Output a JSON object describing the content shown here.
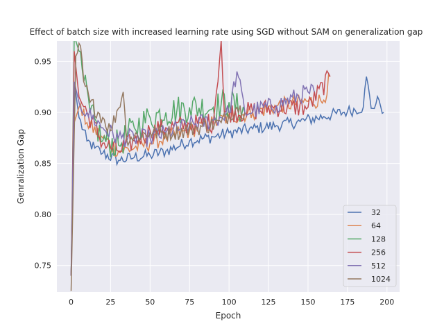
{
  "chart_data": {
    "type": "line",
    "title": "Effect of batch size with increased learning rate using SGD without SAM on generalization gap",
    "xlabel": "Epoch",
    "ylabel": "Genralization Gap",
    "xlim": [
      -9,
      208
    ],
    "ylim": [
      0.724,
      0.97
    ],
    "xticks": [
      0,
      25,
      50,
      75,
      100,
      125,
      150,
      175,
      200
    ],
    "yticks": [
      0.75,
      0.8,
      0.85,
      0.9,
      0.95
    ],
    "grid": true,
    "legend_position": "lower-right",
    "series": [
      {
        "name": "32",
        "color": "#4c72b0",
        "last_epoch": 198,
        "keypoints": [
          [
            0,
            0.74
          ],
          [
            2,
            0.93
          ],
          [
            5,
            0.895
          ],
          [
            10,
            0.872
          ],
          [
            15,
            0.865
          ],
          [
            20,
            0.86
          ],
          [
            30,
            0.853
          ],
          [
            40,
            0.856
          ],
          [
            50,
            0.858
          ],
          [
            60,
            0.862
          ],
          [
            75,
            0.872
          ],
          [
            90,
            0.876
          ],
          [
            100,
            0.88
          ],
          [
            115,
            0.884
          ],
          [
            130,
            0.887
          ],
          [
            145,
            0.891
          ],
          [
            160,
            0.896
          ],
          [
            175,
            0.901
          ],
          [
            185,
            0.905
          ],
          [
            187,
            0.935
          ],
          [
            190,
            0.904
          ],
          [
            195,
            0.912
          ],
          [
            198,
            0.9
          ]
        ],
        "noise": 0.006
      },
      {
        "name": "64",
        "color": "#dd8452",
        "last_epoch": 164,
        "keypoints": [
          [
            0,
            0.74
          ],
          [
            2,
            0.89
          ],
          [
            5,
            0.905
          ],
          [
            10,
            0.89
          ],
          [
            20,
            0.875
          ],
          [
            30,
            0.862
          ],
          [
            40,
            0.865
          ],
          [
            50,
            0.87
          ],
          [
            60,
            0.875
          ],
          [
            75,
            0.882
          ],
          [
            90,
            0.89
          ],
          [
            100,
            0.895
          ],
          [
            115,
            0.9
          ],
          [
            130,
            0.906
          ],
          [
            145,
            0.91
          ],
          [
            160,
            0.912
          ],
          [
            164,
            0.935
          ]
        ],
        "noise": 0.008
      },
      {
        "name": "128",
        "color": "#55a868",
        "last_epoch": 110,
        "keypoints": [
          [
            0,
            0.74
          ],
          [
            2,
            0.975
          ],
          [
            5,
            0.96
          ],
          [
            8,
            0.93
          ],
          [
            12,
            0.9
          ],
          [
            20,
            0.872
          ],
          [
            30,
            0.868
          ],
          [
            40,
            0.885
          ],
          [
            50,
            0.895
          ],
          [
            60,
            0.9
          ],
          [
            75,
            0.905
          ],
          [
            90,
            0.905
          ],
          [
            100,
            0.91
          ],
          [
            110,
            0.9
          ]
        ],
        "noise": 0.015
      },
      {
        "name": "256",
        "color": "#c44e52",
        "last_epoch": 164,
        "keypoints": [
          [
            0,
            0.74
          ],
          [
            2,
            0.96
          ],
          [
            5,
            0.915
          ],
          [
            10,
            0.9
          ],
          [
            20,
            0.87
          ],
          [
            30,
            0.862
          ],
          [
            40,
            0.872
          ],
          [
            50,
            0.882
          ],
          [
            60,
            0.885
          ],
          [
            75,
            0.888
          ],
          [
            90,
            0.89
          ],
          [
            95,
            0.97
          ],
          [
            97,
            0.9
          ],
          [
            110,
            0.9
          ],
          [
            130,
            0.905
          ],
          [
            150,
            0.905
          ],
          [
            164,
            0.935
          ]
        ],
        "noise": 0.01
      },
      {
        "name": "512",
        "color": "#8172b3",
        "last_epoch": 154,
        "keypoints": [
          [
            0,
            0.74
          ],
          [
            2,
            0.93
          ],
          [
            5,
            0.91
          ],
          [
            10,
            0.9
          ],
          [
            20,
            0.885
          ],
          [
            30,
            0.875
          ],
          [
            40,
            0.875
          ],
          [
            50,
            0.875
          ],
          [
            60,
            0.88
          ],
          [
            75,
            0.888
          ],
          [
            90,
            0.892
          ],
          [
            100,
            0.9
          ],
          [
            105,
            0.94
          ],
          [
            110,
            0.9
          ],
          [
            130,
            0.907
          ],
          [
            150,
            0.92
          ],
          [
            154,
            0.92
          ]
        ],
        "noise": 0.009
      },
      {
        "name": "1024",
        "color": "#937860",
        "last_epoch": 110,
        "keypoints": [
          [
            0,
            0.725
          ],
          [
            3,
            0.955
          ],
          [
            6,
            0.965
          ],
          [
            8,
            0.93
          ],
          [
            12,
            0.91
          ],
          [
            20,
            0.895
          ],
          [
            25,
            0.882
          ],
          [
            33,
            0.92
          ],
          [
            35,
            0.875
          ],
          [
            50,
            0.88
          ],
          [
            65,
            0.88
          ],
          [
            80,
            0.885
          ],
          [
            95,
            0.89
          ],
          [
            105,
            0.905
          ],
          [
            110,
            0.9
          ]
        ],
        "noise": 0.008
      }
    ]
  }
}
